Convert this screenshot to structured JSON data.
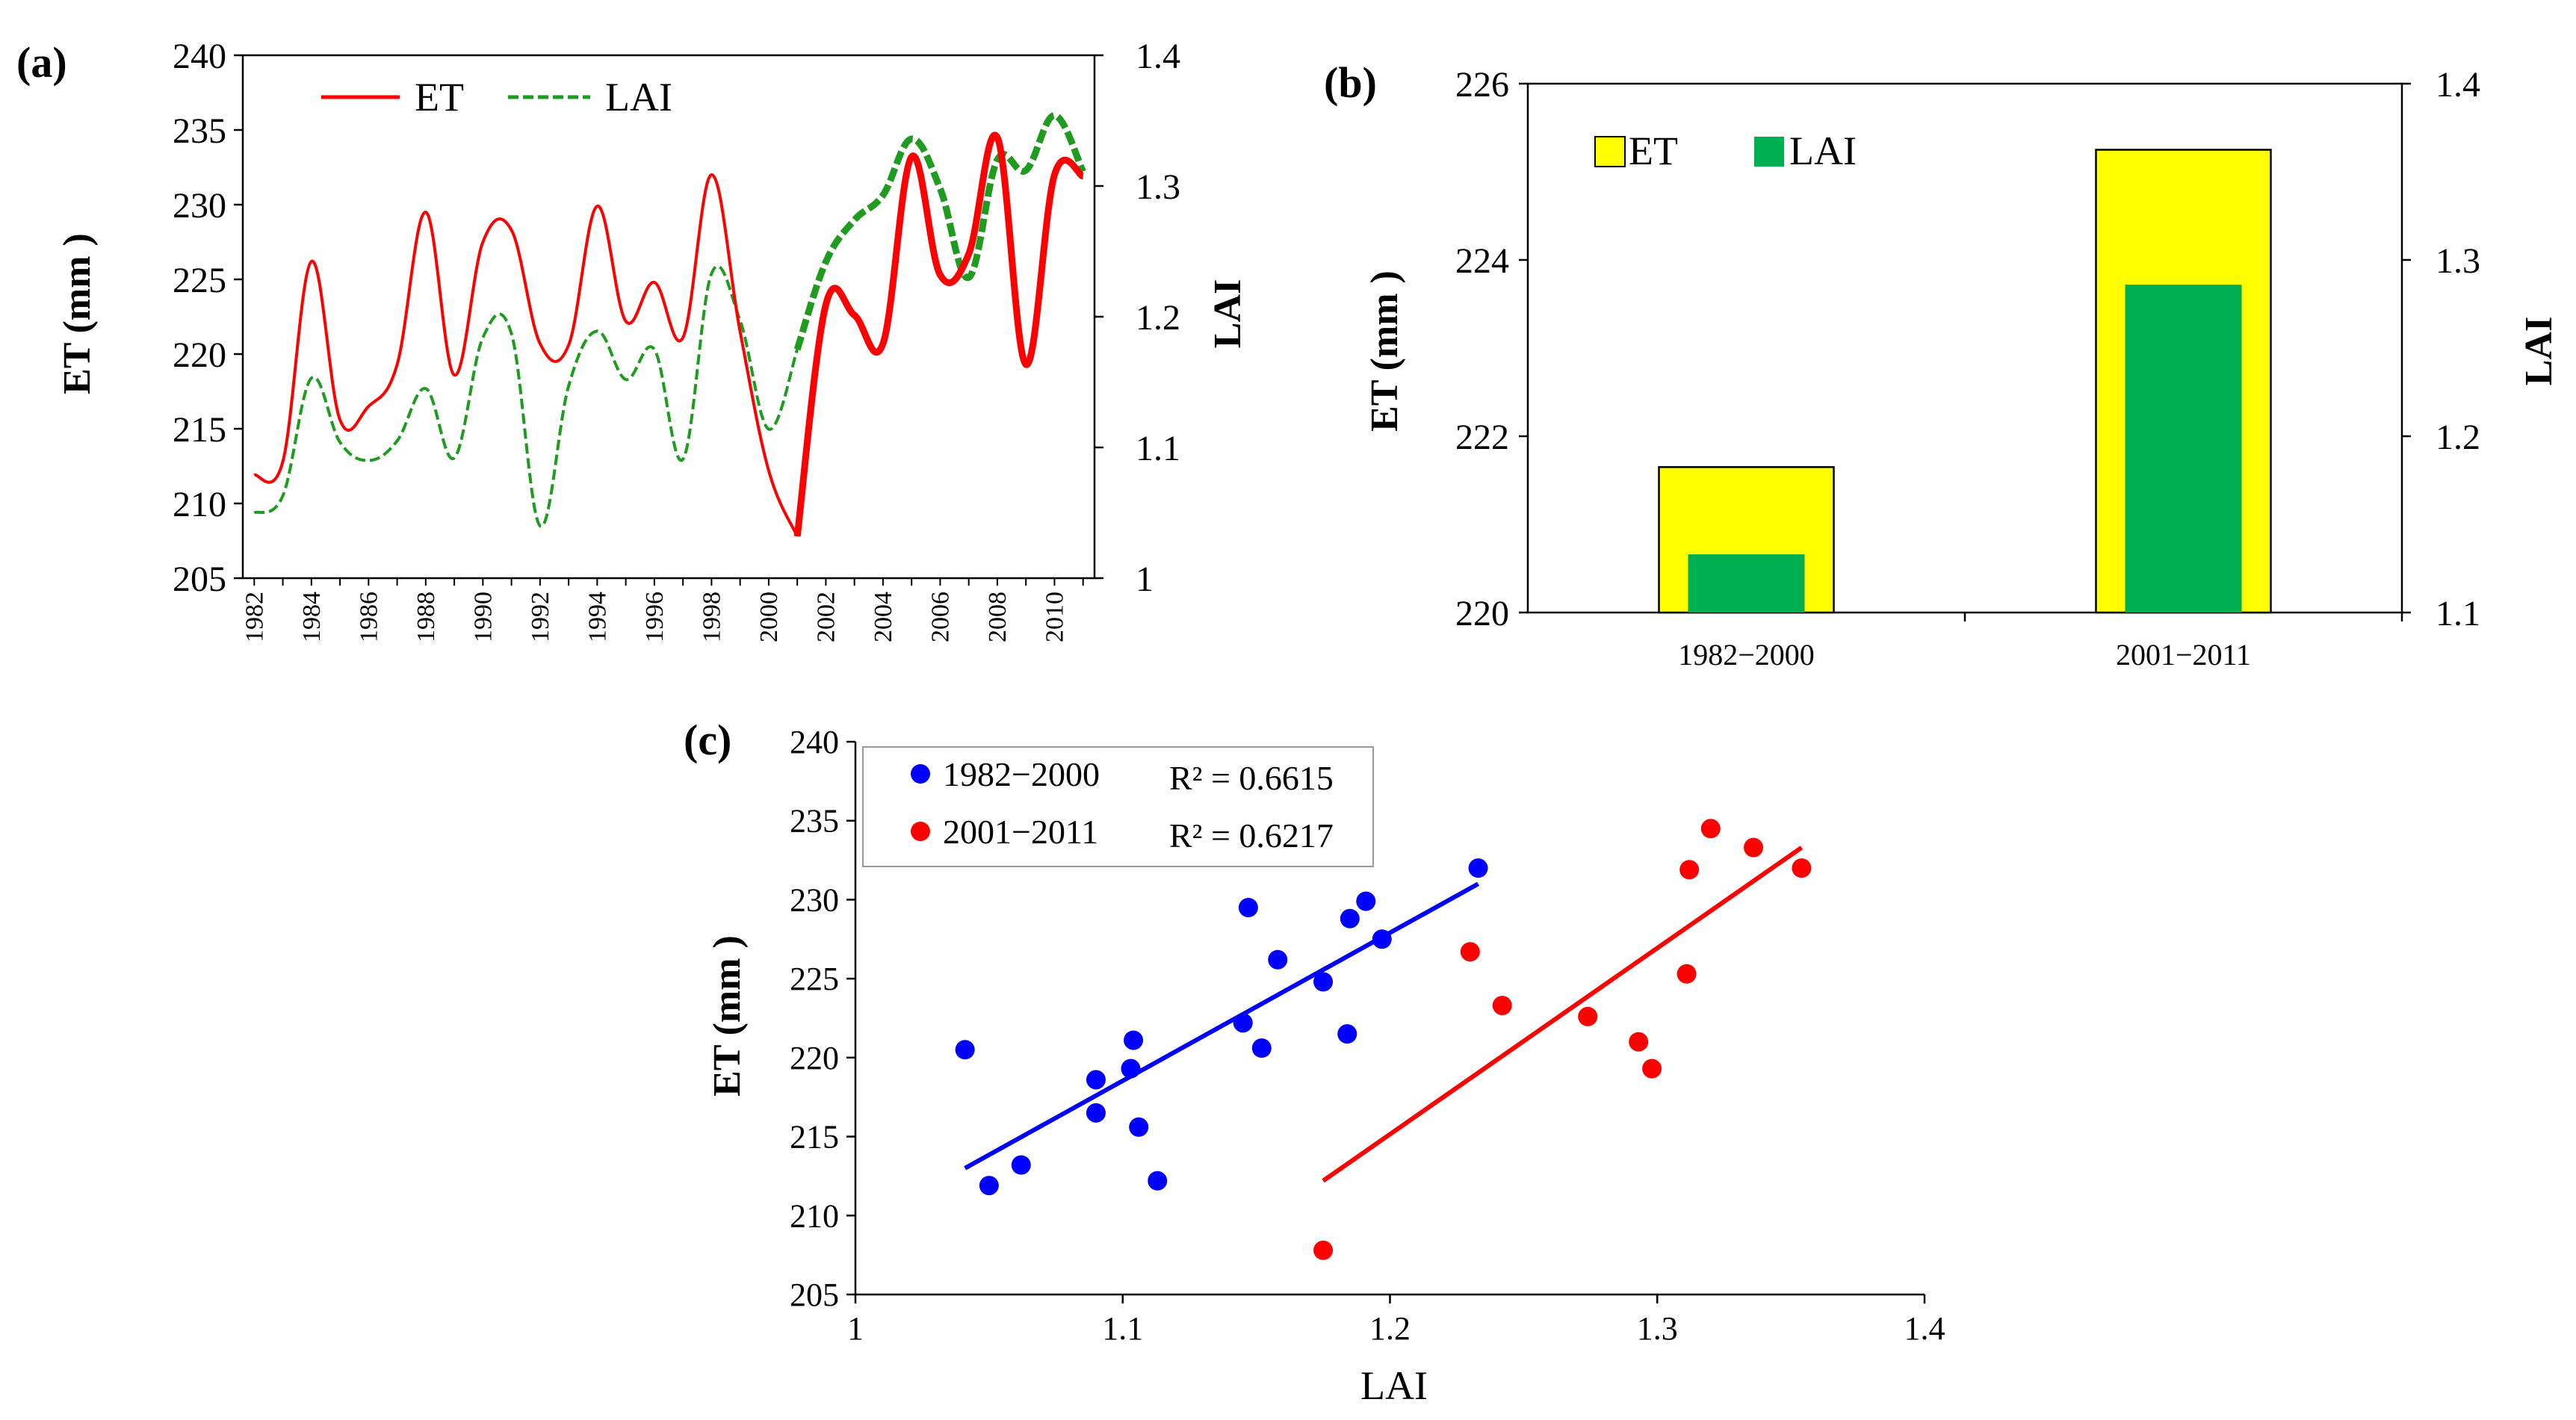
{
  "chart_data": [
    {
      "panel": "(a)",
      "type": "line",
      "title": "",
      "xlabel": "",
      "ylabel": "ET (mm )",
      "y2label": "LAI",
      "ylim": [
        205,
        240
      ],
      "y2lim": [
        1,
        1.4
      ],
      "yticks": [
        "205",
        "210",
        "215",
        "220",
        "225",
        "230",
        "235",
        "240"
      ],
      "y2ticks": [
        "1",
        "1.1",
        "1.2",
        "1.3",
        "1.4"
      ],
      "xticks": [
        "1982",
        "1984",
        "1986",
        "1988",
        "1990",
        "1992",
        "1994",
        "1996",
        "1998",
        "2000",
        "2002",
        "2004",
        "2006",
        "2008",
        "2010"
      ],
      "x": [
        1982,
        1983,
        1984,
        1985,
        1986,
        1987,
        1988,
        1989,
        1990,
        1991,
        1992,
        1993,
        1994,
        1995,
        1996,
        1997,
        1998,
        1999,
        2000,
        2001,
        2002,
        2003,
        2004,
        2005,
        2006,
        2007,
        2008,
        2009,
        2010,
        2011
      ],
      "series": [
        {
          "name": "ET",
          "axis": "left",
          "color": "#ff0000",
          "style": "solid",
          "values": [
            211.9,
            212.8,
            226.2,
            215.6,
            216.5,
            219.3,
            229.5,
            218.6,
            227.5,
            228.3,
            220.7,
            220.6,
            229.9,
            222.2,
            224.8,
            221.1,
            232.0,
            221.5,
            212.2,
            207.8,
            223.3,
            222.6,
            220.7,
            233.2,
            225.3,
            226.7,
            234.5,
            219.3,
            232.0,
            231.9
          ]
        },
        {
          "name": "LAI",
          "axis": "right",
          "color": "#1f9c1f",
          "style": "dashed",
          "values": [
            1.05,
            1.063,
            1.153,
            1.104,
            1.09,
            1.105,
            1.145,
            1.092,
            1.184,
            1.187,
            1.04,
            1.147,
            1.189,
            1.152,
            1.175,
            1.091,
            1.233,
            1.197,
            1.114,
            1.175,
            1.242,
            1.274,
            1.293,
            1.336,
            1.298,
            1.23,
            1.32,
            1.312,
            1.354,
            1.311
          ]
        }
      ],
      "legend": [
        "ET",
        "LAI"
      ],
      "legend_position": "top-left"
    },
    {
      "panel": "(b)",
      "type": "bar",
      "title": "",
      "xlabel": "",
      "ylabel": "ET (mm )",
      "y2label": "LAI",
      "categories": [
        "1982−2000",
        "2001−2011"
      ],
      "ylim": [
        220,
        226
      ],
      "y2lim": [
        1.1,
        1.4
      ],
      "yticks": [
        "220",
        "222",
        "224",
        "226"
      ],
      "y2ticks": [
        "1.1",
        "1.2",
        "1.3",
        "1.4"
      ],
      "series": [
        {
          "name": "ET",
          "axis": "left",
          "color": "#ffff00",
          "values": [
            221.65,
            225.25
          ]
        },
        {
          "name": "LAI",
          "axis": "right",
          "color": "#00b050",
          "values": [
            1.133,
            1.286
          ]
        }
      ],
      "legend": [
        "ET",
        "LAI"
      ],
      "legend_position": "top-left"
    },
    {
      "panel": "(c)",
      "type": "scatter",
      "title": "",
      "xlabel": "LAI",
      "ylabel": "ET (mm )",
      "xlim": [
        1,
        1.4
      ],
      "ylim": [
        205,
        240
      ],
      "xticks": [
        "1",
        "1.1",
        "1.2",
        "1.3",
        "1.4"
      ],
      "yticks": [
        "205",
        "210",
        "215",
        "220",
        "225",
        "230",
        "235",
        "240"
      ],
      "series": [
        {
          "name": "1982−2000",
          "color": "#0000ff",
          "r2": "R² = 0.6615",
          "points": [
            [
              1.041,
              220.5
            ],
            [
              1.05,
              211.9
            ],
            [
              1.062,
              213.2
            ],
            [
              1.09,
              218.6
            ],
            [
              1.09,
              216.5
            ],
            [
              1.103,
              219.3
            ],
            [
              1.104,
              221.1
            ],
            [
              1.106,
              215.6
            ],
            [
              1.113,
              212.2
            ],
            [
              1.145,
              222.2
            ],
            [
              1.147,
              229.5
            ],
            [
              1.152,
              220.6
            ],
            [
              1.158,
              226.2
            ],
            [
              1.175,
              224.8
            ],
            [
              1.184,
              221.5
            ],
            [
              1.185,
              228.8
            ],
            [
              1.191,
              229.9
            ],
            [
              1.197,
              227.5
            ],
            [
              1.233,
              232.0
            ]
          ],
          "fit": [
            [
              1.041,
              213.0
            ],
            [
              1.233,
              231.0
            ]
          ]
        },
        {
          "name": "2001−2011",
          "color": "#ff0000",
          "r2": "R² = 0.6217",
          "points": [
            [
              1.175,
              207.8
            ],
            [
              1.23,
              226.7
            ],
            [
              1.242,
              223.3
            ],
            [
              1.274,
              222.6
            ],
            [
              1.293,
              221.0
            ],
            [
              1.298,
              219.3
            ],
            [
              1.311,
              225.3
            ],
            [
              1.312,
              231.9
            ],
            [
              1.32,
              234.5
            ],
            [
              1.336,
              233.3
            ],
            [
              1.354,
              232.0
            ]
          ],
          "fit": [
            [
              1.175,
              212.2
            ],
            [
              1.354,
              233.3
            ]
          ]
        }
      ],
      "legend_position": "top-left"
    }
  ]
}
